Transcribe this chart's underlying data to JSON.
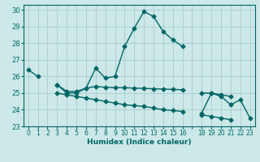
{
  "xlabel": "Humidex (Indice chaleur)",
  "bg_color": "#cce8e8",
  "grid_color": "#aacccc",
  "line_color": "#006666",
  "xlim": [
    -0.5,
    23.5
  ],
  "ylim": [
    23,
    30.3
  ],
  "xtick_labels": [
    "0",
    "1",
    "2",
    "3",
    "4",
    "5",
    "6",
    "7",
    "8",
    "9",
    "10",
    "11",
    "12",
    "13",
    "14",
    "15",
    "16",
    "",
    "18",
    "19",
    "20",
    "21",
    "22",
    "23"
  ],
  "yticks": [
    23,
    24,
    25,
    26,
    27,
    28,
    29,
    30
  ],
  "series": [
    [
      26.4,
      26.0,
      null,
      25.5,
      25.0,
      25.0,
      25.3,
      26.5,
      25.9,
      26.0,
      27.8,
      28.9,
      29.9,
      29.6,
      28.7,
      28.2,
      27.8,
      null,
      23.8,
      25.0,
      24.8,
      24.3,
      24.6,
      23.5
    ],
    [
      null,
      null,
      null,
      25.5,
      25.1,
      25.1,
      25.3,
      25.4,
      25.35,
      25.33,
      25.32,
      25.3,
      25.28,
      25.26,
      25.24,
      25.22,
      25.2,
      null,
      25.0,
      25.0,
      24.9,
      24.8,
      null,
      null
    ],
    [
      null,
      null,
      null,
      25.0,
      24.9,
      24.8,
      24.7,
      24.6,
      24.5,
      24.4,
      24.3,
      24.25,
      24.2,
      24.1,
      24.0,
      23.95,
      23.9,
      null,
      23.7,
      23.6,
      23.5,
      23.4,
      null,
      null
    ]
  ]
}
